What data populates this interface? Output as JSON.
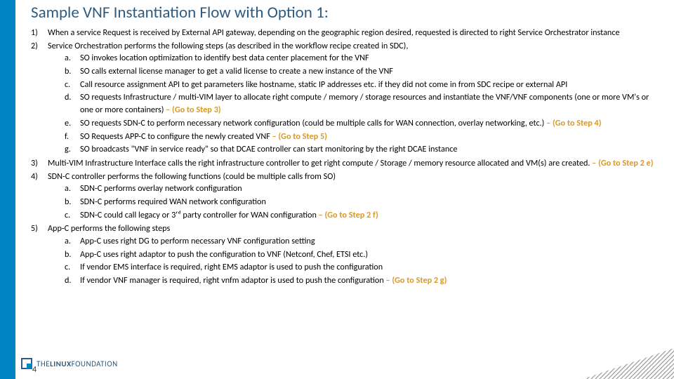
{
  "title": "Sample VNF Instantiation Flow with Option 1:",
  "items": [
    {
      "num": "1)",
      "text": "When a service Request is received by External API gateway, depending on the geographic region desired, requested is directed to right Service Orchestrator instance"
    },
    {
      "num": "2)",
      "text": "Service Orchestration performs the following steps (as described in the workflow recipe created in SDC),",
      "sub": [
        {
          "l": "a.",
          "t": "SO invokes location optimization to identify best data center placement for the VNF"
        },
        {
          "l": "b.",
          "t": "SO calls external license manager to get a valid license to create a new instance of the VNF"
        },
        {
          "l": "c.",
          "t": "Call resource assignment API to get parameters like hostname, static IP addresses etc. if they did not come in from SDC recipe or external API"
        },
        {
          "l": "d.",
          "t": "SO requests Infrastructure / multi-VIM layer to allocate right compute / memory / storage resources and instantiate the VNF/VNF components (one or more VM's or one or more containers)",
          "goto": "– (Go to Step 3)"
        },
        {
          "l": "e.",
          "t": "SO requests SDN-C to perform necessary network configuration (could be multiple calls for WAN connection, overlay networking, etc.)",
          "goto": "– (Go to Step 4)"
        },
        {
          "l": "f.",
          "t": "SO Requests APP-C to configure the newly created VNF",
          "goto": "– (Go to Step 5)"
        },
        {
          "l": "g.",
          "t": "SO broadcasts \"VNF in service ready\" so that DCAE controller can start monitoring by the right DCAE instance"
        }
      ]
    },
    {
      "num": "3)",
      "text": "Multi-VIM Infrastructure Interface calls the right infrastructure controller to get right compute / Storage / memory resource allocated and VM(s) are created.",
      "goto": "– (Go to Step 2 e)"
    },
    {
      "num": "4)",
      "text": "SDN-C controller performs the following functions (could be multiple calls from SO)",
      "sub": [
        {
          "l": "a.",
          "t": "SDN-C performs overlay network configuration"
        },
        {
          "l": "b.",
          "t": "SDN-C performs required WAN network configuration"
        },
        {
          "l": "c.",
          "t": "SDN-C could call legacy or 3ʳᵈ party controller for WAN configuration",
          "goto": "– (Go to Step 2 f)"
        }
      ]
    },
    {
      "num": "5)",
      "text": "App-C performs the following steps",
      "sub": [
        {
          "l": "a.",
          "t": "App-C uses right DG to perform necessary VNF configuration setting"
        },
        {
          "l": "b.",
          "t": "App-C uses right adaptor to push the configuration to VNF (Netconf, Chef, ETSI etc.)"
        },
        {
          "l": "c.",
          "t": "If vendor EMS interface is required, right EMS adaptor is used to push the configuration"
        },
        {
          "l": "d.",
          "t": "If vendor VNF manager is required, right vnfm adaptor is used to push the configuration",
          "goto": "– (Go to Step 2 g)"
        }
      ]
    }
  ],
  "footer": {
    "logo_text_1": "THE",
    "logo_text_2": "LINUX",
    "logo_text_3": "FOUNDATION"
  },
  "page_number": "4",
  "colors": {
    "accent": "#0083c1",
    "title": "#2e5b7f",
    "goto": "#d79a2b",
    "hatch": "#9a9a9a"
  }
}
